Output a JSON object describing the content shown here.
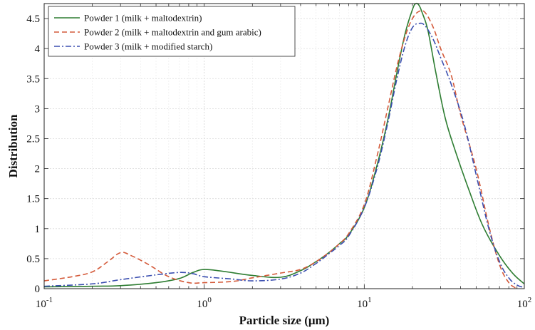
{
  "chart_data": {
    "type": "line",
    "xlabel": "Particle size (μm)",
    "ylabel": "Distribution",
    "xscale": "log",
    "xlim": [
      0.1,
      100
    ],
    "ylim": [
      0,
      4.75
    ],
    "grid": true,
    "legend_position": "top-left",
    "x_tick_labels": [
      {
        "base": "10",
        "exp": "-1"
      },
      {
        "base": "10",
        "exp": "0"
      },
      {
        "base": "10",
        "exp": "1"
      },
      {
        "base": "10",
        "exp": "2"
      }
    ],
    "y_tick_labels": [
      "0",
      "0.5",
      "1",
      "1.5",
      "2",
      "2.5",
      "3",
      "3.5",
      "4",
      "4.5"
    ],
    "series": [
      {
        "name": "Powder 1 (milk + maltodextrin)",
        "color": "#2e7d32",
        "dash": "solid",
        "x": [
          0.1,
          0.2,
          0.3,
          0.5,
          0.7,
          0.85,
          1.0,
          1.3,
          2.0,
          3.0,
          4.0,
          5.0,
          6.0,
          7.0,
          8.0,
          10.0,
          12.0,
          14.0,
          16.0,
          18.0,
          20.0,
          21.0,
          22.0,
          23.0,
          25.0,
          28.0,
          32.0,
          37.0,
          45.0,
          55.0,
          70.0,
          85.0,
          100.0
        ],
        "y": [
          0.03,
          0.04,
          0.05,
          0.1,
          0.17,
          0.27,
          0.32,
          0.29,
          0.22,
          0.19,
          0.3,
          0.45,
          0.6,
          0.75,
          0.9,
          1.35,
          2.05,
          2.8,
          3.6,
          4.25,
          4.65,
          4.75,
          4.72,
          4.6,
          4.3,
          3.6,
          2.85,
          2.3,
          1.65,
          1.05,
          0.55,
          0.25,
          0.08
        ]
      },
      {
        "name": "Powder 2 (milk + maltodextrin and gum arabic)",
        "color": "#d45a3a",
        "dash": "dashed",
        "x": [
          0.1,
          0.15,
          0.2,
          0.25,
          0.3,
          0.35,
          0.45,
          0.6,
          0.8,
          1.0,
          1.5,
          2.0,
          3.0,
          4.0,
          5.0,
          6.0,
          7.0,
          8.0,
          10.0,
          12.0,
          14.0,
          16.0,
          18.0,
          20.0,
          22.0,
          24.0,
          27.0,
          30.0,
          35.0,
          40.0,
          50.0,
          60.0,
          70.0,
          80.0,
          90.0
        ],
        "y": [
          0.13,
          0.2,
          0.28,
          0.45,
          0.6,
          0.55,
          0.4,
          0.2,
          0.1,
          0.1,
          0.12,
          0.18,
          0.26,
          0.32,
          0.45,
          0.6,
          0.75,
          0.92,
          1.4,
          2.2,
          3.0,
          3.7,
          4.2,
          4.5,
          4.62,
          4.6,
          4.35,
          4.0,
          3.55,
          2.9,
          2.0,
          1.05,
          0.4,
          0.1,
          0.0
        ]
      },
      {
        "name": "Powder 3 (milk + modified starch)",
        "color": "#3b4fb0",
        "dash": "dashdot",
        "x": [
          0.1,
          0.2,
          0.3,
          0.5,
          0.7,
          0.85,
          1.0,
          1.5,
          2.0,
          3.0,
          4.0,
          5.0,
          6.0,
          7.0,
          8.0,
          10.0,
          12.0,
          14.0,
          16.0,
          18.0,
          20.0,
          22.0,
          24.0,
          27.0,
          30.0,
          35.0,
          42.0,
          50.0,
          60.0,
          70.0,
          80.0,
          90.0,
          100.0
        ],
        "y": [
          0.04,
          0.08,
          0.15,
          0.23,
          0.27,
          0.25,
          0.2,
          0.16,
          0.13,
          0.16,
          0.26,
          0.42,
          0.58,
          0.72,
          0.88,
          1.35,
          2.0,
          2.75,
          3.5,
          4.05,
          4.35,
          4.42,
          4.38,
          4.15,
          3.85,
          3.4,
          2.75,
          1.9,
          1.0,
          0.45,
          0.18,
          0.06,
          0.02
        ]
      }
    ]
  }
}
